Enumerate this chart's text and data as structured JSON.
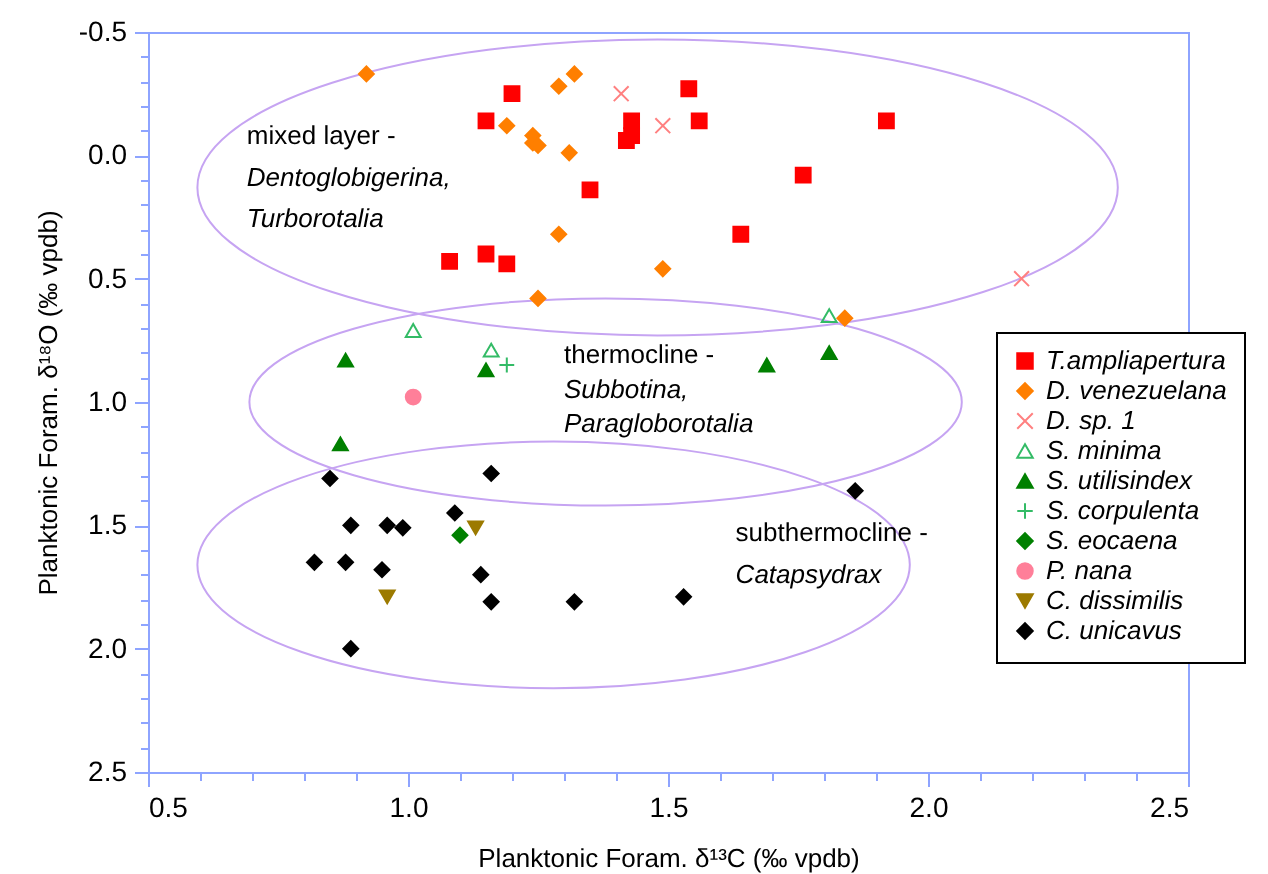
{
  "chart_data": {
    "type": "scatter",
    "xlabel": "Planktonic Foram. δ¹³C (‰ vpdb)",
    "ylabel": "Planktonic Foram. δ¹⁸O (‰ vpdb)",
    "xlim": [
      0.5,
      2.5
    ],
    "ylim": [
      2.5,
      -0.5
    ],
    "xticks": [
      0.5,
      {
        "value": 0.6,
        "label": null
      },
      {
        "value": 0.7,
        "label": null
      },
      {
        "value": 0.8,
        "label": null
      },
      {
        "value": 0.9,
        "label": null
      },
      {
        "value": 1,
        "label": "1.0"
      },
      {
        "value": 1.1,
        "label": null
      },
      {
        "value": 1.2,
        "label": null
      },
      {
        "value": 1.3,
        "label": null
      },
      {
        "value": 1.4,
        "label": null
      },
      1.5,
      {
        "value": 1.6,
        "label": null
      },
      {
        "value": 1.7,
        "label": null
      },
      {
        "value": 1.8,
        "label": null
      },
      {
        "value": 1.9,
        "label": null
      },
      {
        "value": 2,
        "label": "2.0"
      },
      {
        "value": 2.1,
        "label": null
      },
      {
        "value": 2.2,
        "label": null
      },
      {
        "value": 2.3,
        "label": null
      },
      {
        "value": 2.4,
        "label": null
      },
      2.5
    ],
    "yticks": [
      -0.5,
      {
        "value": -0.4,
        "label": null
      },
      {
        "value": -0.3,
        "label": null
      },
      {
        "value": -0.2,
        "label": null
      },
      {
        "value": -0.1,
        "label": null
      },
      {
        "value": 0,
        "label": "0.0"
      },
      {
        "value": 0.1,
        "label": null
      },
      {
        "value": 0.2,
        "label": null
      },
      {
        "value": 0.3,
        "label": null
      },
      {
        "value": 0.4,
        "label": null
      },
      0.5,
      {
        "value": 0.6,
        "label": null
      },
      {
        "value": 0.7,
        "label": null
      },
      {
        "value": 0.8,
        "label": null
      },
      {
        "value": 0.9,
        "label": null
      },
      {
        "value": 1,
        "label": "1.0"
      },
      {
        "value": 1.1,
        "label": null
      },
      {
        "value": 1.2,
        "label": null
      },
      {
        "value": 1.3,
        "label": null
      },
      {
        "value": 1.4,
        "label": null
      },
      1.5,
      {
        "value": 1.6,
        "label": null
      },
      {
        "value": 1.7,
        "label": null
      },
      {
        "value": 1.8,
        "label": null
      },
      {
        "value": 1.9,
        "label": null
      },
      {
        "value": 2,
        "label": "2.0"
      },
      {
        "value": 2.1,
        "label": null
      },
      {
        "value": 2.2,
        "label": null
      },
      {
        "value": 2.3,
        "label": null
      },
      {
        "value": 2.4,
        "label": null
      },
      2.5
    ],
    "grid": false,
    "legend": "right",
    "annotations": [
      "mixed layer -",
      "Dentoglobigerina,",
      "Turborotalia",
      "thermocline -",
      "Subbotina,",
      "Paragloborotalia",
      "subthermocline -",
      "Catapsydrax"
    ],
    "series": [
      {
        "name": "T.ampliapertura",
        "color": "#ff0000",
        "marker": "square",
        "x": [
          1.2,
          1.15,
          1.43,
          1.42,
          1.43,
          1.35,
          1.08,
          1.15,
          1.19,
          1.54,
          1.56,
          1.92,
          1.76,
          1.64
        ],
        "values": [
          -0.25,
          -0.14,
          -0.14,
          -0.06,
          -0.08,
          0.14,
          0.43,
          0.4,
          0.44,
          -0.27,
          -0.14,
          -0.14,
          0.08,
          0.32
        ]
      },
      {
        "name": "D. venezuelana",
        "color": "#ff7f00",
        "marker": "diamond",
        "x": [
          0.92,
          1.29,
          1.32,
          1.19,
          1.24,
          1.24,
          1.25,
          1.31,
          1.29,
          1.49,
          1.25,
          1.84
        ],
        "values": [
          -0.33,
          -0.28,
          -0.33,
          -0.12,
          -0.08,
          -0.05,
          -0.04,
          -0.01,
          0.32,
          0.46,
          0.58,
          0.66
        ]
      },
      {
        "name": "D. sp. 1",
        "color": "#ff8080",
        "marker": "x",
        "x": [
          1.41,
          1.49,
          2.18
        ],
        "values": [
          -0.25,
          -0.12,
          0.5
        ]
      },
      {
        "name": "S. minima",
        "color": "#33bb66",
        "marker": "triangle-open",
        "x": [
          1.01,
          1.16,
          1.81
        ],
        "values": [
          0.71,
          0.79,
          0.65
        ]
      },
      {
        "name": "S. utilisindex",
        "color": "#008000",
        "marker": "triangle",
        "x": [
          0.88,
          1.15,
          0.87,
          1.69,
          1.81
        ],
        "values": [
          0.83,
          0.87,
          1.17,
          0.85,
          0.8
        ]
      },
      {
        "name": "S. corpulenta",
        "color": "#33bb66",
        "marker": "plus",
        "x": [
          1.19
        ],
        "values": [
          0.85
        ]
      },
      {
        "name": "S. eocaena",
        "color": "#008000",
        "marker": "diamond",
        "x": [
          1.1
        ],
        "values": [
          1.54
        ]
      },
      {
        "name": "P. nana",
        "color": "#ff7f99",
        "marker": "circle",
        "x": [
          1.01
        ],
        "values": [
          0.98
        ]
      },
      {
        "name": "C. dissimilis",
        "color": "#9c7a00",
        "marker": "triangle-down",
        "x": [
          1.13,
          0.96
        ],
        "values": [
          1.51,
          1.79
        ]
      },
      {
        "name": "C. unicavus",
        "color": "#000000",
        "marker": "diamond",
        "x": [
          0.85,
          1.16,
          0.89,
          0.96,
          0.99,
          1.09,
          0.82,
          0.88,
          0.95,
          1.14,
          1.16,
          1.32,
          1.53,
          0.89,
          1.86
        ],
        "values": [
          1.31,
          1.29,
          1.5,
          1.5,
          1.51,
          1.45,
          1.65,
          1.65,
          1.68,
          1.7,
          1.81,
          1.81,
          1.79,
          2.0,
          1.36
        ]
      }
    ]
  }
}
